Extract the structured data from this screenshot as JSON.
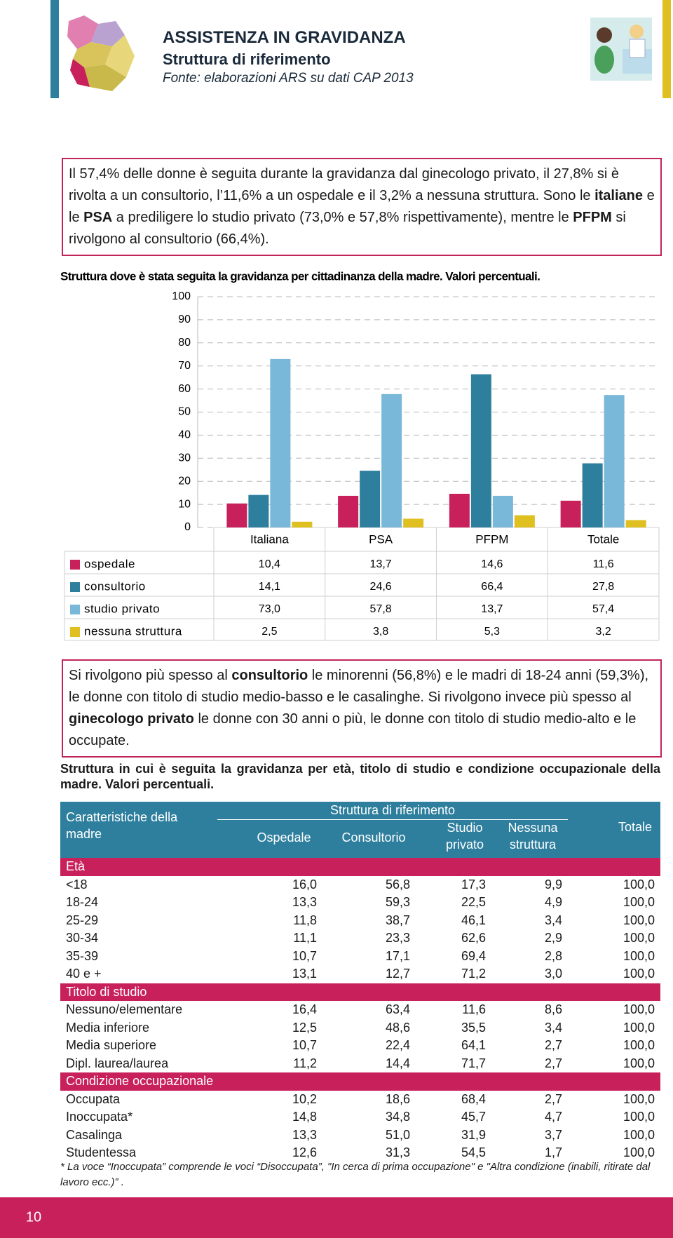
{
  "header": {
    "title": "ASSISTENZA IN GRAVIDANZA",
    "subtitle": "Struttura di riferimento",
    "source": "Fonte: elaborazioni ARS su dati CAP 2013"
  },
  "intro": [
    "Il 57,4% delle donne è seguita durante la gravidanza dal ginecologo privato, il 27,8% si è rivolta a un consultorio, l’11,6% a un ospedale e il 3,2% a nessuna struttura. Sono le ",
    "italiane",
    " e le ",
    "PSA",
    " a prediligere lo studio privato (73,0% e 57,8% rispettivamente), mentre le ",
    "PFPM",
    " si rivolgono al consultorio (66,4%)."
  ],
  "chart_data": {
    "type": "bar",
    "title": "Struttura dove è stata seguita la gravidanza per cittadinanza della madre. Valori percentuali.",
    "categories": [
      "Italiana",
      "PSA",
      "PFPM",
      "Totale"
    ],
    "series": [
      {
        "name": "ospedale",
        "color": "#c8205a",
        "values": [
          10.4,
          13.7,
          14.6,
          11.6
        ],
        "value_labels": [
          "10,4",
          "13,7",
          "14,6",
          "11,6"
        ]
      },
      {
        "name": "consultorio",
        "color": "#2e7f9e",
        "values": [
          14.1,
          24.6,
          66.4,
          27.8
        ],
        "value_labels": [
          "14,1",
          "24,6",
          "66,4",
          "27,8"
        ]
      },
      {
        "name": "studio privato",
        "color": "#7ab8d9",
        "values": [
          73.0,
          57.8,
          13.7,
          57.4
        ],
        "value_labels": [
          "73,0",
          "57,8",
          "13,7",
          "57,4"
        ]
      },
      {
        "name": "nessuna struttura",
        "color": "#e0c020",
        "values": [
          2.5,
          3.8,
          5.3,
          3.2
        ],
        "value_labels": [
          "2,5",
          "3,8",
          "5,3",
          "3,2"
        ]
      }
    ],
    "ylim": [
      0,
      100
    ],
    "yticks": [
      0,
      10,
      20,
      30,
      40,
      50,
      60,
      70,
      80,
      90,
      100
    ],
    "grid": true
  },
  "note": [
    "Si rivolgono più spesso al ",
    "consultorio",
    " le minorenni (56,8%) e le madri di 18-24 anni (59,3%), le donne con titolo di studio medio-basso e le casalinghe. Si rivolgono invece più spesso al ",
    "ginecologo privato",
    " le donne con 30 anni o più, le donne con titolo di studio medio-alto e le occupate."
  ],
  "table": {
    "title": "Struttura in cui è seguita la gravidanza per età, titolo di studio e condizione occupazionale della madre. Valori percentuali.",
    "header": {
      "row_label": "Caratteristiche della madre",
      "group": "Struttura di riferimento",
      "columns": [
        "Ospedale",
        "Consultorio",
        "Studio privato",
        "Nessuna struttura"
      ],
      "total": "Totale"
    },
    "sections": [
      {
        "name": "Età",
        "rows": [
          [
            "<18",
            "16,0",
            "56,8",
            "17,3",
            "9,9",
            "100,0"
          ],
          [
            "18-24",
            "13,3",
            "59,3",
            "22,5",
            "4,9",
            "100,0"
          ],
          [
            "25-29",
            "11,8",
            "38,7",
            "46,1",
            "3,4",
            "100,0"
          ],
          [
            "30-34",
            "11,1",
            "23,3",
            "62,6",
            "2,9",
            "100,0"
          ],
          [
            "35-39",
            "10,7",
            "17,1",
            "69,4",
            "2,8",
            "100,0"
          ],
          [
            "40 e +",
            "13,1",
            "12,7",
            "71,2",
            "3,0",
            "100,0"
          ]
        ]
      },
      {
        "name": "Titolo di studio",
        "rows": [
          [
            "Nessuno/elementare",
            "16,4",
            "63,4",
            "11,6",
            "8,6",
            "100,0"
          ],
          [
            "Media inferiore",
            "12,5",
            "48,6",
            "35,5",
            "3,4",
            "100,0"
          ],
          [
            "Media superiore",
            "10,7",
            "22,4",
            "64,1",
            "2,7",
            "100,0"
          ],
          [
            "Dipl. laurea/laurea",
            "11,2",
            "14,4",
            "71,7",
            "2,7",
            "100,0"
          ]
        ]
      },
      {
        "name": "Condizione occupazionale",
        "rows": [
          [
            "Occupata",
            "10,2",
            "18,6",
            "68,4",
            "2,7",
            "100,0"
          ],
          [
            "Inoccupata*",
            "14,8",
            "34,8",
            "45,7",
            "4,7",
            "100,0"
          ],
          [
            "Casalinga",
            "13,3",
            "51,0",
            "31,9",
            "3,7",
            "100,0"
          ],
          [
            "Studentessa",
            "12,6",
            "31,3",
            "54,5",
            "1,7",
            "100,0"
          ]
        ]
      }
    ]
  },
  "footnote": "* La voce “Inoccupata” comprende le voci “Disoccupata”, \"In cerca di prima occupazione\" e \"Altra condizione (inabili, ritirate dal lavoro ecc.)” .",
  "page_number": 10
}
